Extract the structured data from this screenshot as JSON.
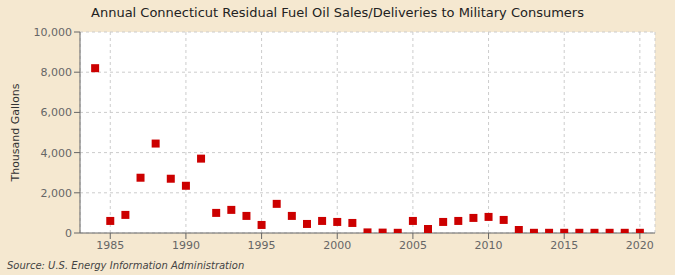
{
  "chart_data": {
    "type": "scatter",
    "title": "Annual Connecticut Residual Fuel Oil Sales/Deliveries to Military Consumers",
    "ylabel": "Thousand Gallons",
    "annotations": [
      "Source: U.S. Energy Information Administration"
    ],
    "x": [
      1984,
      1985,
      1986,
      1987,
      1988,
      1989,
      1990,
      1991,
      1992,
      1993,
      1994,
      1995,
      1996,
      1997,
      1998,
      1999,
      2000,
      2001,
      2002,
      2003,
      2004,
      2005,
      2006,
      2007,
      2008,
      2009,
      2010,
      2011,
      2012,
      2013,
      2014,
      2015,
      2016,
      2017,
      2018,
      2019,
      2020
    ],
    "values": [
      8200,
      600,
      900,
      2750,
      4450,
      2700,
      2350,
      3700,
      1000,
      1150,
      850,
      400,
      1450,
      850,
      450,
      600,
      550,
      500,
      30,
      20,
      10,
      600,
      200,
      550,
      600,
      750,
      800,
      650,
      150,
      10,
      10,
      10,
      10,
      10,
      10,
      10,
      10
    ],
    "color": "#cc0000",
    "marker": "square",
    "xlim": [
      1983,
      2021
    ],
    "ylim": [
      0,
      10000
    ],
    "xticks": [
      1985,
      1990,
      1995,
      2000,
      2005,
      2010,
      2015,
      2020
    ],
    "yticks": [
      0,
      {
        "value": 2000,
        "label": "2,000"
      },
      {
        "value": 4000,
        "label": "4,000"
      },
      {
        "value": 6000,
        "label": "6,000"
      },
      {
        "value": 8000,
        "label": "8,000"
      },
      {
        "value": 10000,
        "label": "10,000"
      }
    ],
    "grid": true
  }
}
